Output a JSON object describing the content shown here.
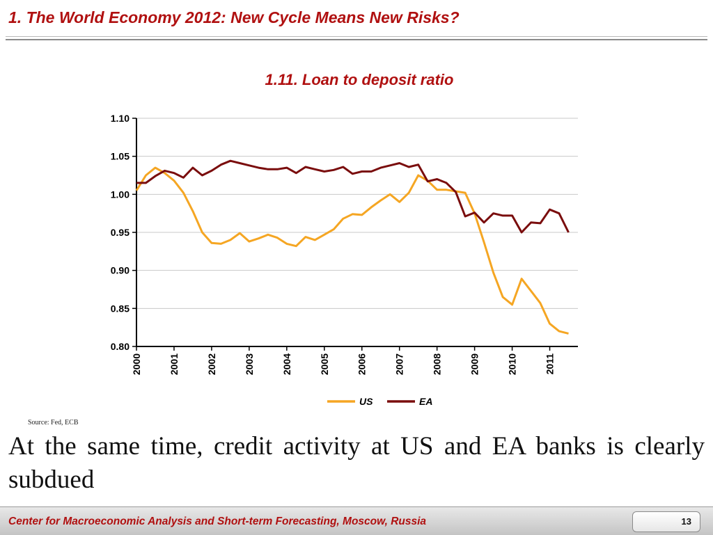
{
  "slide": {
    "title": "1. The World Economy 2012: New Cycle Means New Risks?",
    "source": "Source: Fed, ECB",
    "body": "At the same time, credit activity at US and EA banks is clearly subdued",
    "footer": "Center for Macroeconomic Analysis and Short-term Forecasting, Moscow, Russia",
    "page_number": "13"
  },
  "colors": {
    "title": "#b01010",
    "us": "#f5a623",
    "ea": "#7a0d0d"
  },
  "chart_data": {
    "type": "line",
    "title": "1.11. Loan to deposit ratio",
    "xlabel": "",
    "ylabel": "",
    "x_ticks": [
      "2000",
      "2001",
      "2002",
      "2003",
      "2004",
      "2005",
      "2006",
      "2007",
      "2008",
      "2009",
      "2010",
      "2011"
    ],
    "y_ticks": [
      "0.80",
      "0.85",
      "0.90",
      "0.95",
      "1.00",
      "1.05",
      "1.10"
    ],
    "xlim": [
      2000,
      2011.75
    ],
    "ylim": [
      0.8,
      1.1
    ],
    "grid": true,
    "legend": "bottom",
    "series": [
      {
        "name": "US",
        "color": "#f5a623",
        "x": [
          2000.0,
          2000.25,
          2000.5,
          2000.75,
          2001.0,
          2001.25,
          2001.5,
          2001.75,
          2002.0,
          2002.25,
          2002.5,
          2002.75,
          2003.0,
          2003.25,
          2003.5,
          2003.75,
          2004.0,
          2004.25,
          2004.5,
          2004.75,
          2005.0,
          2005.25,
          2005.5,
          2005.75,
          2006.0,
          2006.25,
          2006.5,
          2006.75,
          2007.0,
          2007.25,
          2007.5,
          2007.75,
          2008.0,
          2008.25,
          2008.5,
          2008.75,
          2009.0,
          2009.25,
          2009.5,
          2009.75,
          2010.0,
          2010.25,
          2010.5,
          2010.75,
          2011.0,
          2011.25,
          2011.5
        ],
        "values": [
          1.005,
          1.025,
          1.035,
          1.028,
          1.018,
          1.002,
          0.978,
          0.95,
          0.936,
          0.935,
          0.94,
          0.949,
          0.938,
          0.942,
          0.947,
          0.943,
          0.935,
          0.932,
          0.944,
          0.94,
          0.947,
          0.954,
          0.968,
          0.974,
          0.973,
          0.983,
          0.992,
          1.0,
          0.99,
          1.002,
          1.025,
          1.018,
          1.006,
          1.006,
          1.004,
          1.002,
          0.975,
          0.937,
          0.897,
          0.865,
          0.855,
          0.889,
          0.873,
          0.857,
          0.83,
          0.82,
          0.817
        ]
      },
      {
        "name": "EA",
        "color": "#7a0d0d",
        "x": [
          2000.0,
          2000.25,
          2000.5,
          2000.75,
          2001.0,
          2001.25,
          2001.5,
          2001.75,
          2002.0,
          2002.25,
          2002.5,
          2002.75,
          2003.0,
          2003.25,
          2003.5,
          2003.75,
          2004.0,
          2004.25,
          2004.5,
          2004.75,
          2005.0,
          2005.25,
          2005.5,
          2005.75,
          2006.0,
          2006.25,
          2006.5,
          2006.75,
          2007.0,
          2007.25,
          2007.5,
          2007.75,
          2008.0,
          2008.25,
          2008.5,
          2008.75,
          2009.0,
          2009.25,
          2009.5,
          2009.75,
          2010.0,
          2010.25,
          2010.5,
          2010.75,
          2011.0,
          2011.25,
          2011.5
        ],
        "values": [
          1.015,
          1.015,
          1.024,
          1.031,
          1.028,
          1.022,
          1.035,
          1.025,
          1.031,
          1.039,
          1.044,
          1.041,
          1.038,
          1.035,
          1.033,
          1.033,
          1.035,
          1.028,
          1.036,
          1.033,
          1.03,
          1.032,
          1.036,
          1.027,
          1.03,
          1.03,
          1.035,
          1.038,
          1.041,
          1.036,
          1.039,
          1.017,
          1.02,
          1.015,
          1.003,
          0.971,
          0.976,
          0.963,
          0.975,
          0.972,
          0.972,
          0.95,
          0.963,
          0.962,
          0.98,
          0.975,
          0.95
        ]
      }
    ]
  }
}
